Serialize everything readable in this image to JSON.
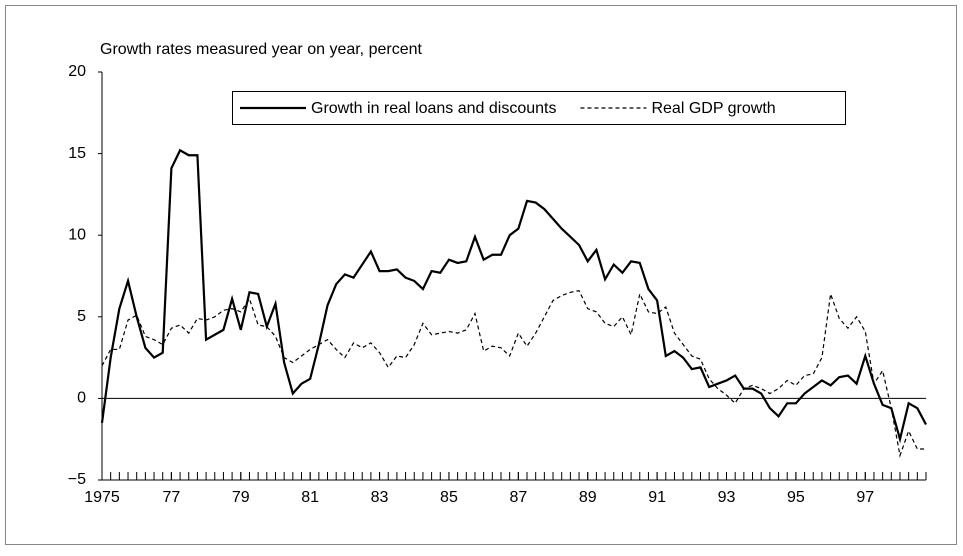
{
  "chart_data": {
    "type": "line",
    "title": "Growth rates measured year on year, percent",
    "x": [
      1975,
      1975.25,
      1975.5,
      1975.75,
      1976,
      1976.25,
      1976.5,
      1976.75,
      1977,
      1977.25,
      1977.5,
      1977.75,
      1978,
      1978.25,
      1978.5,
      1978.75,
      1979,
      1979.25,
      1979.5,
      1979.75,
      1980,
      1980.25,
      1980.5,
      1980.75,
      1981,
      1981.25,
      1981.5,
      1981.75,
      1982,
      1982.25,
      1982.5,
      1982.75,
      1983,
      1983.25,
      1983.5,
      1983.75,
      1984,
      1984.25,
      1984.5,
      1984.75,
      1985,
      1985.25,
      1985.5,
      1985.75,
      1986,
      1986.25,
      1986.5,
      1986.75,
      1987,
      1987.25,
      1987.5,
      1987.75,
      1988,
      1988.25,
      1988.5,
      1988.75,
      1989,
      1989.25,
      1989.5,
      1989.75,
      1990,
      1990.25,
      1990.5,
      1990.75,
      1991,
      1991.25,
      1991.5,
      1991.75,
      1992,
      1992.25,
      1992.5,
      1992.75,
      1993,
      1993.25,
      1993.5,
      1993.75,
      1994,
      1994.25,
      1994.5,
      1994.75,
      1995,
      1995.25,
      1995.5,
      1995.75,
      1996,
      1996.25,
      1996.5,
      1996.75,
      1997,
      1997.25,
      1997.5,
      1997.75,
      1998,
      1998.25,
      1998.5,
      1998.75
    ],
    "series": [
      {
        "name": "Growth in real loans and discounts",
        "color": "#000000",
        "dash": false,
        "values": [
          -1.5,
          2.5,
          5.5,
          7.2,
          5,
          3.1,
          2.5,
          2.8,
          14.1,
          15.2,
          14.9,
          14.9,
          3.6,
          3.9,
          4.2,
          6.1,
          4.2,
          6.5,
          6.4,
          4.4,
          5.8,
          2.2,
          0.3,
          0.9,
          1.2,
          3.3,
          5.7,
          7,
          7.6,
          7.4,
          8.2,
          9,
          7.8,
          7.8,
          7.9,
          7.4,
          7.2,
          6.7,
          7.8,
          7.7,
          8.5,
          8.3,
          8.4,
          9.9,
          8.5,
          8.8,
          8.8,
          10,
          10.4,
          12.1,
          12,
          11.6,
          11,
          10.4,
          9.9,
          9.4,
          8.4,
          9.1,
          7.3,
          8.2,
          7.7,
          8.4,
          8.3,
          6.7,
          6,
          2.6,
          2.9,
          2.5,
          1.8,
          1.9,
          0.7,
          0.9,
          1.1,
          1.4,
          0.6,
          0.6,
          0.3,
          -0.6,
          -1.1,
          -0.3,
          -0.3,
          0.3,
          0.7,
          1.1,
          0.8,
          1.3,
          1.4,
          0.9,
          2.6,
          0.9,
          -0.4,
          -0.6,
          -2.5,
          -0.3,
          -0.6,
          -1.6
        ]
      },
      {
        "name": "Real GDP growth",
        "color": "#000000",
        "dash": true,
        "values": [
          2,
          3,
          3,
          4.8,
          5.1,
          3.8,
          3.6,
          3.3,
          4.3,
          4.5,
          4,
          4.9,
          4.8,
          5,
          5.4,
          5.5,
          5.3,
          6.1,
          4.5,
          4.4,
          3.8,
          2.5,
          2.2,
          2.6,
          3,
          3.3,
          3.6,
          3,
          2.5,
          3.4,
          3.1,
          3.4,
          2.8,
          1.9,
          2.6,
          2.5,
          3.3,
          4.6,
          3.9,
          4,
          4.1,
          4,
          4.2,
          5.2,
          2.9,
          3.2,
          3.1,
          2.6,
          4,
          3.2,
          4,
          5,
          6,
          6.3,
          6.5,
          6.6,
          5.5,
          5.3,
          4.6,
          4.4,
          5,
          3.9,
          6.4,
          5.3,
          5.2,
          5.6,
          4,
          3.3,
          2.6,
          2.4,
          1.2,
          0.6,
          0.2,
          -0.3,
          0.6,
          0.8,
          0.6,
          0.3,
          0.6,
          1.1,
          0.8,
          1.4,
          1.5,
          2.5,
          6.4,
          4.9,
          4.3,
          5,
          4.1,
          0.9,
          1.7,
          -0.6,
          -3.5,
          -2,
          -3.1,
          -3.1
        ]
      }
    ],
    "xlim": [
      1975,
      1998.75
    ],
    "xticks": [
      {
        "value": 1975,
        "label": "1975"
      },
      {
        "value": 1977,
        "label": "77"
      },
      {
        "value": 1979,
        "label": "79"
      },
      {
        "value": 1981,
        "label": "81"
      },
      {
        "value": 1983,
        "label": "83"
      },
      {
        "value": 1985,
        "label": "85"
      },
      {
        "value": 1987,
        "label": "87"
      },
      {
        "value": 1989,
        "label": "89"
      },
      {
        "value": 1991,
        "label": "91"
      },
      {
        "value": 1993,
        "label": "93"
      },
      {
        "value": 1995,
        "label": "95"
      },
      {
        "value": 1997,
        "label": "97"
      }
    ],
    "ylim": [
      -5,
      20
    ],
    "yticks": [
      {
        "value": -5,
        "label": "−5"
      },
      0,
      5,
      10,
      15,
      20
    ]
  }
}
